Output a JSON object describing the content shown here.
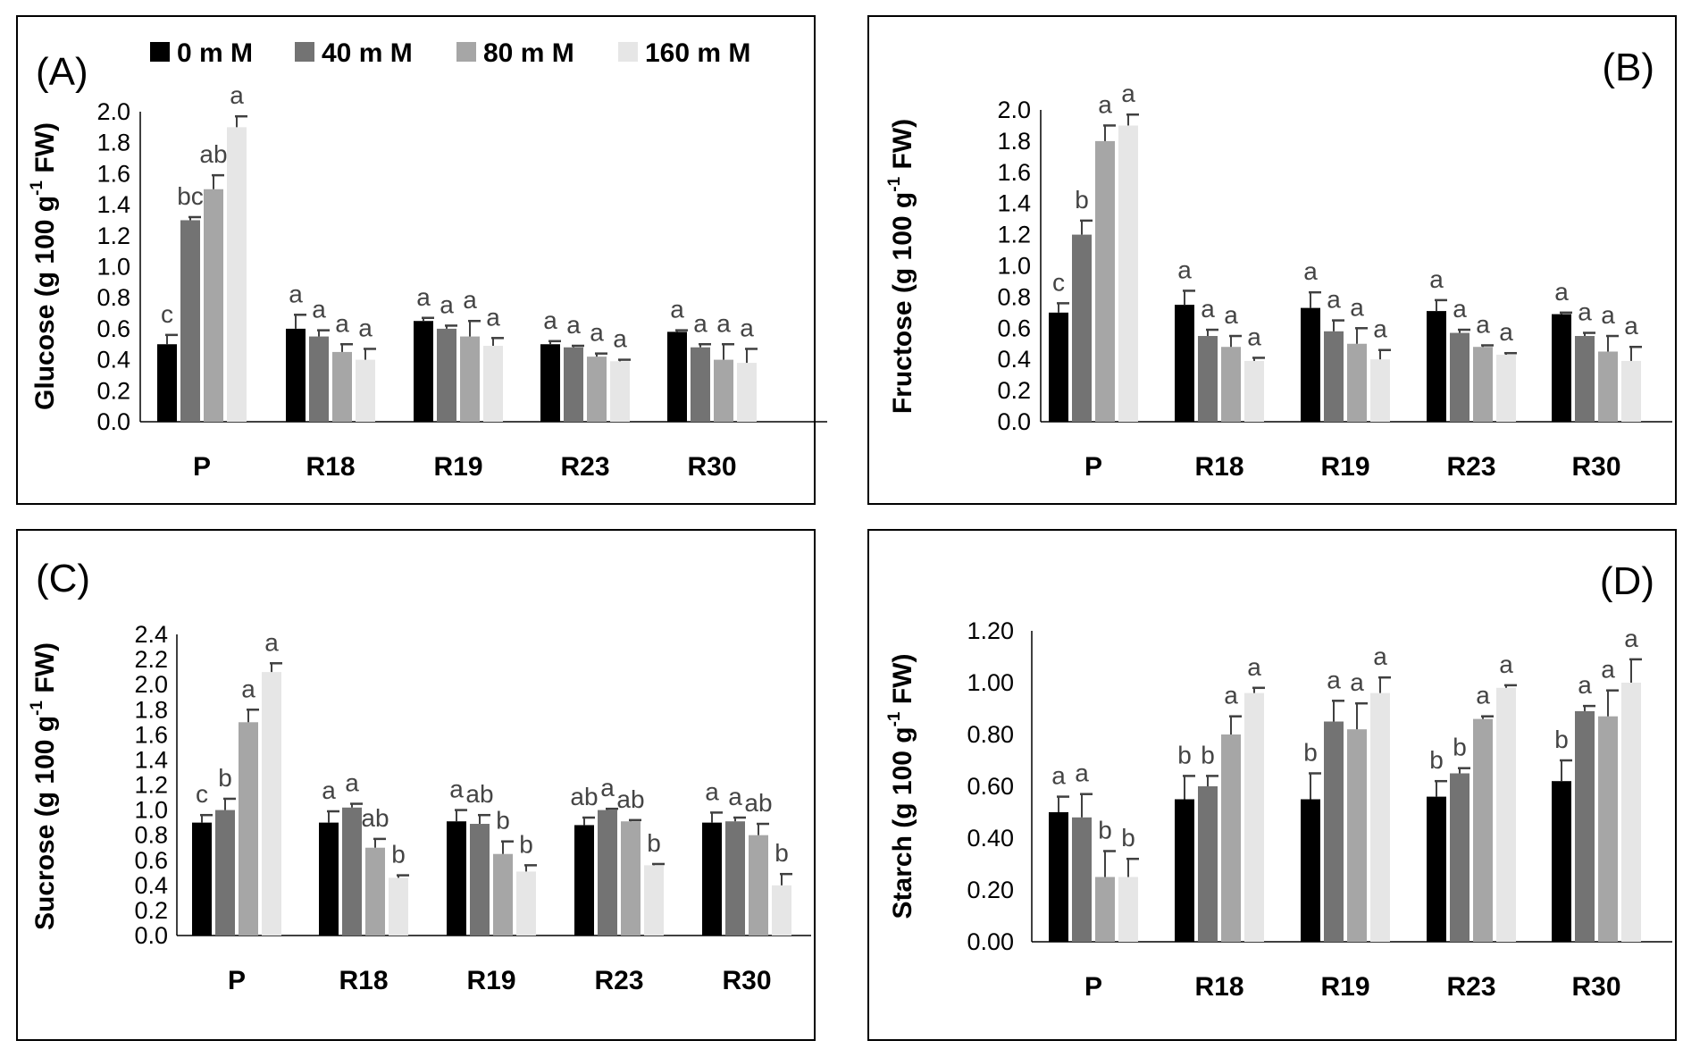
{
  "legend": [
    {
      "label": "0 m M",
      "color": "#000000"
    },
    {
      "label": "40 m M",
      "color": "#737373"
    },
    {
      "label": "80 m M",
      "color": "#a6a6a6"
    },
    {
      "label": "160 m M",
      "color": "#e6e6e6"
    }
  ],
  "chart_data": [
    {
      "type": "bar",
      "panel_label": "(A)",
      "title": "",
      "ylabel_main": "Glucose (g 100 g",
      "ylabel_sup": "-1",
      "ylabel_tail": " FW)",
      "xlabel": "",
      "categories": [
        "P",
        "R18",
        "R19",
        "R23",
        "R30"
      ],
      "ylim": [
        0,
        2.0
      ],
      "yticks": [
        "0.0",
        "0.2",
        "0.4",
        "0.6",
        "0.8",
        "1.0",
        "1.2",
        "1.4",
        "1.6",
        "1.8",
        "2.0"
      ],
      "series": [
        {
          "name": "0 m M",
          "values": [
            0.5,
            0.6,
            0.65,
            0.5,
            0.58
          ],
          "errors": [
            0.06,
            0.09,
            0.02,
            0.02,
            0.01
          ],
          "letters": [
            "c",
            "a",
            "a",
            "a",
            "a"
          ]
        },
        {
          "name": "40 m M",
          "values": [
            1.3,
            0.55,
            0.6,
            0.48,
            0.48
          ],
          "errors": [
            0.02,
            0.04,
            0.02,
            0.01,
            0.02
          ],
          "letters": [
            "bc",
            "a",
            "a",
            "a",
            "a"
          ]
        },
        {
          "name": "80 m M",
          "values": [
            1.5,
            0.45,
            0.55,
            0.42,
            0.4
          ],
          "errors": [
            0.09,
            0.05,
            0.1,
            0.02,
            0.1
          ],
          "letters": [
            "ab",
            "a",
            "a",
            "a",
            "a"
          ]
        },
        {
          "name": "160 m M",
          "values": [
            1.9,
            0.4,
            0.49,
            0.39,
            0.38
          ],
          "errors": [
            0.07,
            0.07,
            0.05,
            0.01,
            0.09
          ],
          "letters": [
            "a",
            "a",
            "a",
            "a",
            "a"
          ]
        }
      ]
    },
    {
      "type": "bar",
      "panel_label": "(B)",
      "title": "",
      "ylabel_main": "Fructose (g 100 g",
      "ylabel_sup": "-1",
      "ylabel_tail": " FW)",
      "xlabel": "",
      "categories": [
        "P",
        "R18",
        "R19",
        "R23",
        "R30"
      ],
      "ylim": [
        0,
        2.0
      ],
      "yticks": [
        "0.0",
        "0.2",
        "0.4",
        "0.6",
        "0.8",
        "1.0",
        "1.2",
        "1.4",
        "1.6",
        "1.8",
        "2.0"
      ],
      "series": [
        {
          "name": "0 m M",
          "values": [
            0.7,
            0.75,
            0.73,
            0.71,
            0.69
          ],
          "errors": [
            0.06,
            0.09,
            0.1,
            0.07,
            0.01
          ],
          "letters": [
            "c",
            "a",
            "a",
            "a",
            "a"
          ]
        },
        {
          "name": "40 m M",
          "values": [
            1.2,
            0.55,
            0.58,
            0.57,
            0.55
          ],
          "errors": [
            0.09,
            0.04,
            0.07,
            0.02,
            0.02
          ],
          "letters": [
            "b",
            "a",
            "a",
            "a",
            "a"
          ]
        },
        {
          "name": "80 m M",
          "values": [
            1.8,
            0.48,
            0.5,
            0.48,
            0.45
          ],
          "errors": [
            0.1,
            0.07,
            0.1,
            0.01,
            0.1
          ],
          "letters": [
            "a",
            "a",
            "a",
            "a",
            "a"
          ]
        },
        {
          "name": "160 m M",
          "values": [
            1.9,
            0.39,
            0.4,
            0.43,
            0.39
          ],
          "errors": [
            0.07,
            0.02,
            0.06,
            0.01,
            0.09
          ],
          "letters": [
            "a",
            "a",
            "a",
            "a",
            "a"
          ]
        }
      ]
    },
    {
      "type": "bar",
      "panel_label": "(C)",
      "title": "",
      "ylabel_main": "Sucrose (g 100 g",
      "ylabel_sup": "-1",
      "ylabel_tail": " FW)",
      "xlabel": "",
      "categories": [
        "P",
        "R18",
        "R19",
        "R23",
        "R30"
      ],
      "ylim": [
        0,
        2.4
      ],
      "yticks": [
        "0.0",
        "0.2",
        "0.4",
        "0.6",
        "0.8",
        "1.0",
        "1.2",
        "1.4",
        "1.6",
        "1.8",
        "2.0",
        "2.2",
        "2.4"
      ],
      "series": [
        {
          "name": "0 m M",
          "values": [
            0.9,
            0.9,
            0.91,
            0.88,
            0.9
          ],
          "errors": [
            0.06,
            0.09,
            0.09,
            0.06,
            0.08
          ],
          "letters": [
            "c",
            "a",
            "a",
            "ab",
            "a"
          ]
        },
        {
          "name": "40 m M",
          "values": [
            1.0,
            1.02,
            0.89,
            1.0,
            0.91
          ],
          "errors": [
            0.09,
            0.03,
            0.07,
            0.01,
            0.03
          ],
          "letters": [
            "b",
            "a",
            "ab",
            "a",
            "a"
          ]
        },
        {
          "name": "80 m M",
          "values": [
            1.7,
            0.7,
            0.65,
            0.91,
            0.8
          ],
          "errors": [
            0.1,
            0.07,
            0.1,
            0.01,
            0.09
          ],
          "letters": [
            "a",
            "ab",
            "b",
            "ab",
            "ab"
          ]
        },
        {
          "name": "160 m M",
          "values": [
            2.1,
            0.46,
            0.51,
            0.56,
            0.4
          ],
          "errors": [
            0.07,
            0.02,
            0.05,
            0.01,
            0.09
          ],
          "letters": [
            "a",
            "b",
            "b",
            "b",
            "b"
          ]
        }
      ]
    },
    {
      "type": "bar",
      "panel_label": "(D)",
      "title": "",
      "ylabel_main": "Starch (g 100 g",
      "ylabel_sup": "-1",
      "ylabel_tail": " FW)",
      "xlabel": "",
      "categories": [
        "P",
        "R18",
        "R19",
        "R23",
        "R30"
      ],
      "ylim": [
        0,
        1.2
      ],
      "yticks": [
        "0.00",
        "0.20",
        "0.40",
        "0.60",
        "0.80",
        "1.00",
        "1.20"
      ],
      "series": [
        {
          "name": "0 m M",
          "values": [
            0.5,
            0.55,
            0.55,
            0.56,
            0.62
          ],
          "errors": [
            0.06,
            0.09,
            0.1,
            0.06,
            0.08
          ],
          "letters": [
            "a",
            "b",
            "b",
            "b",
            "b"
          ]
        },
        {
          "name": "40 m M",
          "values": [
            0.48,
            0.6,
            0.85,
            0.65,
            0.89
          ],
          "errors": [
            0.09,
            0.04,
            0.08,
            0.02,
            0.02
          ],
          "letters": [
            "a",
            "b",
            "a",
            "b",
            "a"
          ]
        },
        {
          "name": "80 m M",
          "values": [
            0.25,
            0.8,
            0.82,
            0.86,
            0.87
          ],
          "errors": [
            0.1,
            0.07,
            0.1,
            0.01,
            0.1
          ],
          "letters": [
            "b",
            "a",
            "a",
            "a",
            "a"
          ]
        },
        {
          "name": "160 m M",
          "values": [
            0.25,
            0.96,
            0.96,
            0.98,
            1.0
          ],
          "errors": [
            0.07,
            0.02,
            0.06,
            0.01,
            0.09
          ],
          "letters": [
            "b",
            "a",
            "a",
            "a",
            "a"
          ]
        }
      ]
    }
  ]
}
